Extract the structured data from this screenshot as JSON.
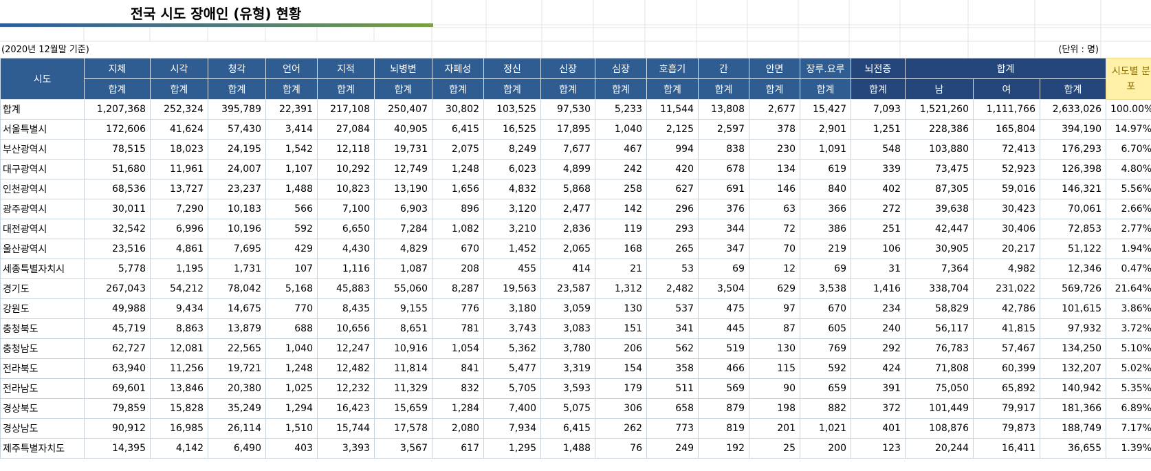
{
  "title": "전국 시도 장애인 (유형) 현황",
  "as_of": "(2020년 12월말 기준)",
  "unit": "(단위 : 명)",
  "table": {
    "region_header": "시도",
    "categories": [
      "지체",
      "시각",
      "청각",
      "언어",
      "지적",
      "뇌병변",
      "자폐성",
      "정신",
      "신장",
      "심장",
      "호흡기",
      "간",
      "안면",
      "장루.요루",
      "뇌전증"
    ],
    "subheader": "합계",
    "total_group_header": "합계",
    "total_subheaders": [
      "남",
      "여",
      "합계"
    ],
    "share_header": "시도별 분포",
    "rows": [
      {
        "region": "합계",
        "values": [
          "1,207,368",
          "252,324",
          "395,789",
          "22,391",
          "217,108",
          "250,407",
          "30,802",
          "103,525",
          "97,530",
          "5,233",
          "11,544",
          "13,808",
          "2,677",
          "15,427",
          "7,093",
          "1,521,260",
          "1,111,766",
          "2,633,026",
          "100.00%"
        ]
      },
      {
        "region": "서울특별시",
        "values": [
          "172,606",
          "41,624",
          "57,430",
          "3,414",
          "27,084",
          "40,905",
          "6,415",
          "16,525",
          "17,895",
          "1,040",
          "2,125",
          "2,597",
          "378",
          "2,901",
          "1,251",
          "228,386",
          "165,804",
          "394,190",
          "14.97%"
        ]
      },
      {
        "region": "부산광역시",
        "values": [
          "78,515",
          "18,023",
          "24,195",
          "1,542",
          "12,118",
          "19,731",
          "2,075",
          "8,249",
          "7,677",
          "467",
          "994",
          "838",
          "230",
          "1,091",
          "548",
          "103,880",
          "72,413",
          "176,293",
          "6.70%"
        ]
      },
      {
        "region": "대구광역시",
        "values": [
          "51,680",
          "11,961",
          "24,007",
          "1,107",
          "10,292",
          "12,749",
          "1,248",
          "6,023",
          "4,899",
          "242",
          "420",
          "678",
          "134",
          "619",
          "339",
          "73,475",
          "52,923",
          "126,398",
          "4.80%"
        ]
      },
      {
        "region": "인천광역시",
        "values": [
          "68,536",
          "13,727",
          "23,237",
          "1,488",
          "10,823",
          "13,190",
          "1,656",
          "4,832",
          "5,868",
          "258",
          "627",
          "691",
          "146",
          "840",
          "402",
          "87,305",
          "59,016",
          "146,321",
          "5.56%"
        ]
      },
      {
        "region": "광주광역시",
        "values": [
          "30,011",
          "7,290",
          "10,183",
          "566",
          "7,100",
          "6,903",
          "896",
          "3,120",
          "2,477",
          "142",
          "296",
          "376",
          "63",
          "366",
          "272",
          "39,638",
          "30,423",
          "70,061",
          "2.66%"
        ]
      },
      {
        "region": "대전광역시",
        "values": [
          "32,542",
          "6,996",
          "10,196",
          "592",
          "6,650",
          "7,284",
          "1,082",
          "3,210",
          "2,836",
          "119",
          "293",
          "344",
          "72",
          "386",
          "251",
          "42,447",
          "30,406",
          "72,853",
          "2.77%"
        ]
      },
      {
        "region": "울산광역시",
        "values": [
          "23,516",
          "4,861",
          "7,695",
          "429",
          "4,430",
          "4,829",
          "670",
          "1,452",
          "2,065",
          "168",
          "265",
          "347",
          "70",
          "219",
          "106",
          "30,905",
          "20,217",
          "51,122",
          "1.94%"
        ]
      },
      {
        "region": "세종특별자치시",
        "values": [
          "5,778",
          "1,195",
          "1,731",
          "107",
          "1,116",
          "1,087",
          "208",
          "455",
          "414",
          "21",
          "53",
          "69",
          "12",
          "69",
          "31",
          "7,364",
          "4,982",
          "12,346",
          "0.47%"
        ]
      },
      {
        "region": "경기도",
        "values": [
          "267,043",
          "54,212",
          "78,042",
          "5,168",
          "45,883",
          "55,060",
          "8,287",
          "19,563",
          "23,587",
          "1,312",
          "2,482",
          "3,504",
          "629",
          "3,538",
          "1,416",
          "338,704",
          "231,022",
          "569,726",
          "21.64%"
        ]
      },
      {
        "region": "강원도",
        "values": [
          "49,988",
          "9,434",
          "14,675",
          "770",
          "8,435",
          "9,155",
          "776",
          "3,180",
          "3,059",
          "130",
          "537",
          "475",
          "97",
          "670",
          "234",
          "58,829",
          "42,786",
          "101,615",
          "3.86%"
        ]
      },
      {
        "region": "충청북도",
        "values": [
          "45,719",
          "8,863",
          "13,879",
          "688",
          "10,656",
          "8,651",
          "781",
          "3,743",
          "3,083",
          "151",
          "341",
          "445",
          "87",
          "605",
          "240",
          "56,117",
          "41,815",
          "97,932",
          "3.72%"
        ]
      },
      {
        "region": "충청남도",
        "values": [
          "62,727",
          "12,081",
          "22,565",
          "1,040",
          "12,247",
          "10,916",
          "1,054",
          "5,362",
          "3,780",
          "206",
          "562",
          "519",
          "130",
          "769",
          "292",
          "76,783",
          "57,467",
          "134,250",
          "5.10%"
        ]
      },
      {
        "region": "전라북도",
        "values": [
          "63,940",
          "11,256",
          "19,721",
          "1,248",
          "12,482",
          "11,814",
          "841",
          "5,477",
          "3,319",
          "154",
          "358",
          "466",
          "115",
          "592",
          "424",
          "71,808",
          "60,399",
          "132,207",
          "5.02%"
        ]
      },
      {
        "region": "전라남도",
        "values": [
          "69,601",
          "13,846",
          "20,380",
          "1,025",
          "12,232",
          "11,329",
          "832",
          "5,705",
          "3,593",
          "179",
          "511",
          "569",
          "90",
          "659",
          "391",
          "75,050",
          "65,892",
          "140,942",
          "5.35%"
        ]
      },
      {
        "region": "경상북도",
        "values": [
          "79,859",
          "15,828",
          "35,249",
          "1,294",
          "16,423",
          "15,659",
          "1,284",
          "7,400",
          "5,075",
          "306",
          "658",
          "879",
          "198",
          "882",
          "372",
          "101,449",
          "79,917",
          "181,366",
          "6.89%"
        ]
      },
      {
        "region": "경상남도",
        "values": [
          "90,912",
          "16,985",
          "26,114",
          "1,510",
          "15,744",
          "17,578",
          "2,080",
          "7,934",
          "6,415",
          "262",
          "773",
          "819",
          "201",
          "1,021",
          "401",
          "108,876",
          "79,873",
          "188,749",
          "7.17%"
        ]
      },
      {
        "region": "제주특별자치도",
        "values": [
          "14,395",
          "4,142",
          "6,490",
          "403",
          "3,393",
          "3,567",
          "617",
          "1,295",
          "1,488",
          "76",
          "249",
          "192",
          "25",
          "200",
          "123",
          "20,244",
          "16,411",
          "36,655",
          "1.39%"
        ]
      }
    ]
  }
}
